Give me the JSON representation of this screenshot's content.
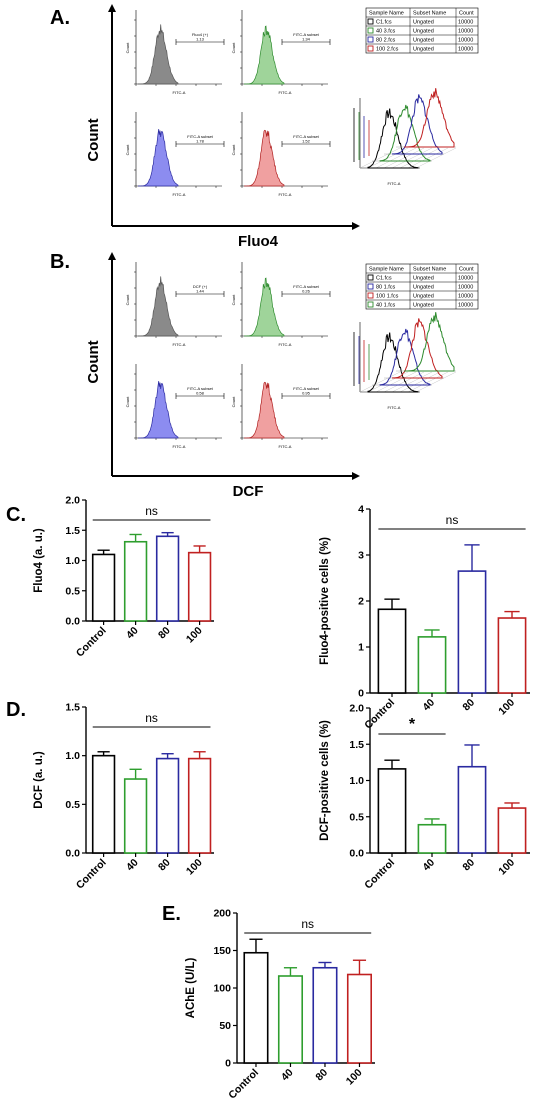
{
  "panels": {
    "A": {
      "letter": "A.",
      "ylabel": "Count",
      "xlabel": "Fluo4",
      "histograms": [
        {
          "color": "#555555",
          "fill": "#8a8a8a",
          "gate_label": "Fluo4 (+)",
          "gate_value": "1.13"
        },
        {
          "color": "#2e8b2e",
          "fill": "#9fd49a",
          "gate_label": "FITC-A subset",
          "gate_value": "1.34"
        },
        {
          "color": "#2a2aa0",
          "fill": "#8c8cf0",
          "gate_label": "FITC-A subset",
          "gate_value": "1.78"
        },
        {
          "color": "#b02020",
          "fill": "#f0a0a0",
          "gate_label": "FITC-A subset",
          "gate_value": "1.52"
        }
      ],
      "legend": {
        "headers": [
          "Sample Name",
          "Subset Name",
          "Count"
        ],
        "rows": [
          {
            "name": "C1.fcs",
            "subset": "Ungated",
            "count": "10000",
            "color": "#000000"
          },
          {
            "name": "40 3.fcs",
            "subset": "Ungated",
            "count": "10000",
            "color": "#2e8b2e"
          },
          {
            "name": "80 2.fcs",
            "subset": "Ungated",
            "count": "10000",
            "color": "#2a2aa0"
          },
          {
            "name": "100 2.fcs",
            "subset": "Ungated",
            "count": "10000",
            "color": "#c02020"
          }
        ]
      },
      "overlay_xlabel": "FITC-A"
    },
    "B": {
      "letter": "B.",
      "ylabel": "Count",
      "xlabel": "DCF",
      "histograms": [
        {
          "color": "#555555",
          "fill": "#8a8a8a",
          "gate_label": "DCF (+)",
          "gate_value": "1.44"
        },
        {
          "color": "#2e8b2e",
          "fill": "#9fd49a",
          "gate_label": "FITC-A subset",
          "gate_value": "0.26"
        },
        {
          "color": "#2a2aa0",
          "fill": "#8c8cf0",
          "gate_label": "FITC-A subset",
          "gate_value": "0.58"
        },
        {
          "color": "#b02020",
          "fill": "#f0a0a0",
          "gate_label": "FITC-A subset",
          "gate_value": "0.95"
        }
      ],
      "legend": {
        "headers": [
          "Sample Name",
          "Subset Name",
          "Count"
        ],
        "rows": [
          {
            "name": "C1.fcs",
            "subset": "Ungated",
            "count": "10000",
            "color": "#000000"
          },
          {
            "name": "80 1.fcs",
            "subset": "Ungated",
            "count": "10000",
            "color": "#2a2aa0"
          },
          {
            "name": "100 1.fcs",
            "subset": "Ungated",
            "count": "10000",
            "color": "#c02020"
          },
          {
            "name": "40 1.fcs",
            "subset": "Ungated",
            "count": "10000",
            "color": "#2e8b2e"
          }
        ]
      },
      "overlay_xlabel": "FITC-A"
    },
    "C": {
      "letter": "C."
    },
    "D": {
      "letter": "D."
    },
    "E": {
      "letter": "E."
    }
  },
  "colors": {
    "Control": "#000000",
    "40": "#2e9e2e",
    "80": "#2a2aa0",
    "100": "#c02020"
  },
  "chart_data": [
    {
      "id": "C-left",
      "type": "bar",
      "categories": [
        "Control",
        "40",
        "80",
        "100"
      ],
      "values": [
        1.1,
        1.31,
        1.4,
        1.13
      ],
      "errors": [
        0.07,
        0.12,
        0.06,
        0.11
      ],
      "ylabel": "Fluo4 (a. u.)",
      "ylim": [
        0,
        2.0
      ],
      "yticks": [
        "0.0",
        "0.5",
        "1.0",
        "1.5",
        "2.0"
      ],
      "significance": {
        "label": "ns",
        "from": 0,
        "to": 3
      }
    },
    {
      "id": "C-right",
      "type": "bar",
      "categories": [
        "Control",
        "40",
        "80",
        "100"
      ],
      "values": [
        1.82,
        1.22,
        2.65,
        1.63
      ],
      "errors": [
        0.22,
        0.15,
        0.57,
        0.14
      ],
      "ylabel": "Fluo4-positive cells (%)",
      "ylim": [
        0,
        4
      ],
      "yticks": [
        "0",
        "1",
        "2",
        "3",
        "4"
      ],
      "significance": {
        "label": "ns",
        "from": 0,
        "to": 3
      }
    },
    {
      "id": "D-left",
      "type": "bar",
      "categories": [
        "Control",
        "40",
        "80",
        "100"
      ],
      "values": [
        1.0,
        0.76,
        0.97,
        0.97
      ],
      "errors": [
        0.04,
        0.1,
        0.05,
        0.07
      ],
      "ylabel": "DCF (a. u.)",
      "ylim": [
        0,
        1.5
      ],
      "yticks": [
        "0.0",
        "0.5",
        "1.0",
        "1.5"
      ],
      "significance": {
        "label": "ns",
        "from": 0,
        "to": 3
      }
    },
    {
      "id": "D-right",
      "type": "bar",
      "categories": [
        "Control",
        "40",
        "80",
        "100"
      ],
      "values": [
        1.16,
        0.39,
        1.19,
        0.62
      ],
      "errors": [
        0.12,
        0.08,
        0.3,
        0.07
      ],
      "ylabel": "DCF-positive cells (%)",
      "ylim": [
        0,
        2.0
      ],
      "yticks": [
        "0.0",
        "0.5",
        "1.0",
        "1.5",
        "2.0"
      ],
      "significance": {
        "label": "*",
        "from": 0,
        "to": 1
      }
    },
    {
      "id": "E",
      "type": "bar",
      "categories": [
        "Control",
        "40",
        "80",
        "100"
      ],
      "values": [
        147,
        116,
        127,
        118
      ],
      "errors": [
        18,
        11,
        7,
        19
      ],
      "ylabel": "AChE (U/L)",
      "ylim": [
        0,
        200
      ],
      "yticks": [
        "0",
        "50",
        "100",
        "150",
        "200"
      ],
      "significance": {
        "label": "ns",
        "from": 0,
        "to": 3
      }
    }
  ]
}
